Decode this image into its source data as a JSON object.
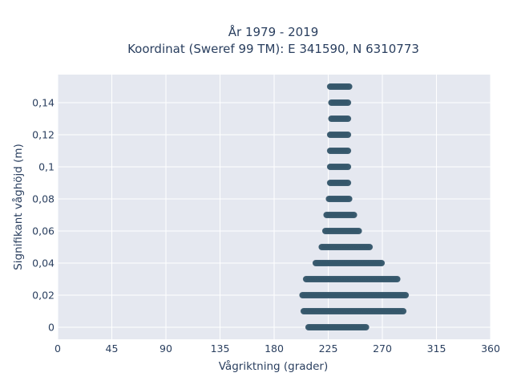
{
  "chart_data": {
    "type": "scatter",
    "title_line1": "År 1979 - 2019",
    "title_line2": "Koordinat (Sweref 99 TM): E 341590, N 6310773",
    "xlabel": "Vågriktning (grader)",
    "ylabel": "Signifikant våghöjd (m)",
    "xlim": [
      0,
      360
    ],
    "ylim": [
      -0.0075,
      0.1575
    ],
    "x_ticks": [
      {
        "value": 0,
        "label": "0"
      },
      {
        "value": 45,
        "label": "45"
      },
      {
        "value": 90,
        "label": "90"
      },
      {
        "value": 135,
        "label": "135"
      },
      {
        "value": 180,
        "label": "180"
      },
      {
        "value": 225,
        "label": "225"
      },
      {
        "value": 270,
        "label": "270"
      },
      {
        "value": 315,
        "label": "315"
      },
      {
        "value": 360,
        "label": "360"
      }
    ],
    "y_ticks": [
      {
        "value": 0,
        "label": "0"
      },
      {
        "value": 0.02,
        "label": "0,02"
      },
      {
        "value": 0.04,
        "label": "0,04"
      },
      {
        "value": 0.06,
        "label": "0,06"
      },
      {
        "value": 0.08,
        "label": "0,08"
      },
      {
        "value": 0.1,
        "label": "0,1"
      },
      {
        "value": 0.12,
        "label": "0,12"
      },
      {
        "value": 0.14,
        "label": "0,14"
      }
    ],
    "grid": true,
    "marker_color": "#34566b",
    "plot_background": "#e5e8f0",
    "points": [
      {
        "height": 0.0,
        "dir_min": 208,
        "dir_max": 257
      },
      {
        "height": 0.01,
        "dir_min": 204,
        "dir_max": 288
      },
      {
        "height": 0.02,
        "dir_min": 203,
        "dir_max": 290
      },
      {
        "height": 0.03,
        "dir_min": 206,
        "dir_max": 283
      },
      {
        "height": 0.04,
        "dir_min": 214,
        "dir_max": 270
      },
      {
        "height": 0.05,
        "dir_min": 219,
        "dir_max": 260
      },
      {
        "height": 0.06,
        "dir_min": 222,
        "dir_max": 251
      },
      {
        "height": 0.07,
        "dir_min": 223,
        "dir_max": 247
      },
      {
        "height": 0.08,
        "dir_min": 225,
        "dir_max": 243
      },
      {
        "height": 0.09,
        "dir_min": 226,
        "dir_max": 242
      },
      {
        "height": 0.1,
        "dir_min": 226,
        "dir_max": 242
      },
      {
        "height": 0.11,
        "dir_min": 226,
        "dir_max": 242
      },
      {
        "height": 0.12,
        "dir_min": 226,
        "dir_max": 242
      },
      {
        "height": 0.13,
        "dir_min": 227,
        "dir_max": 242
      },
      {
        "height": 0.14,
        "dir_min": 227,
        "dir_max": 242
      },
      {
        "height": 0.15,
        "dir_min": 226,
        "dir_max": 243
      }
    ]
  }
}
